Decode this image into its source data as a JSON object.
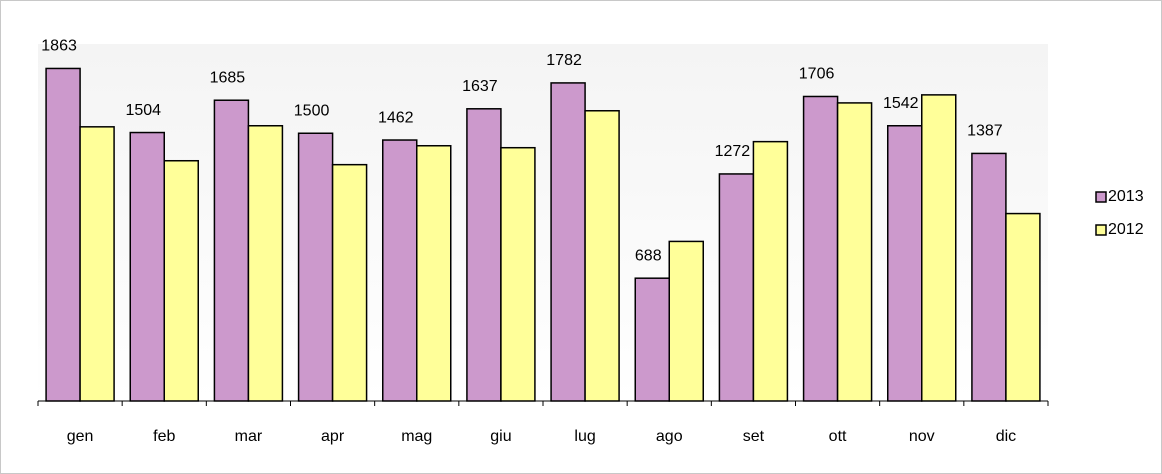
{
  "chart_data": {
    "type": "bar",
    "categories": [
      "gen",
      "feb",
      "mar",
      "apr",
      "mag",
      "giu",
      "lug",
      "ago",
      "set",
      "ott",
      "nov",
      "dic"
    ],
    "series": [
      {
        "name": "2013",
        "color": "#cc99cc",
        "values": [
          1863,
          1504,
          1685,
          1500,
          1462,
          1637,
          1782,
          688,
          1272,
          1706,
          1542,
          1387
        ]
      },
      {
        "name": "2012",
        "color": "#ffff99",
        "values": [
          1536,
          1346,
          1542,
          1324,
          1430,
          1419,
          1626,
          894,
          1453,
          1670,
          1715,
          1050
        ]
      }
    ],
    "ylim": [
      0,
      2000
    ],
    "legend": "right"
  }
}
